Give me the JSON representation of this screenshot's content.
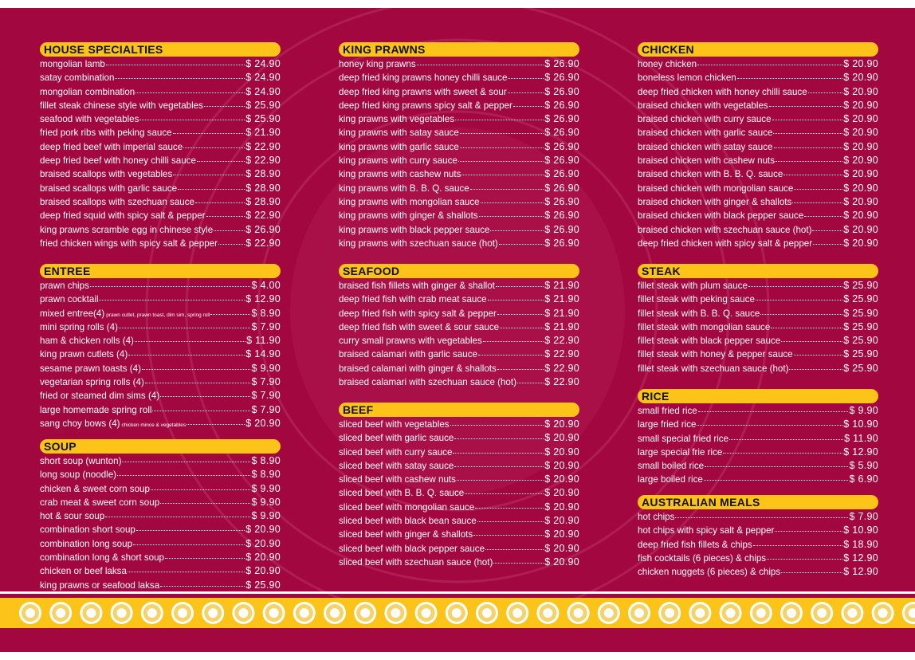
{
  "sections": [
    {
      "title": "HOUSE SPECIALTIES",
      "items": [
        {
          "name": "mongolian lamb",
          "price": "$ 24.90"
        },
        {
          "name": "satay combination",
          "price": "$ 24.90"
        },
        {
          "name": "mongolian combination",
          "price": "$ 24.90"
        },
        {
          "name": "fillet steak chinese style with vegetables",
          "price": "$ 25.90"
        },
        {
          "name": "seafood with vegetables",
          "price": "$ 25.90"
        },
        {
          "name": "fried pork ribs with peking sauce",
          "price": "$ 21.90"
        },
        {
          "name": "deep fried beef with imperial sauce",
          "price": "$ 22.90"
        },
        {
          "name": "deep fried beef with honey chilli sauce",
          "price": "$ 22.90"
        },
        {
          "name": "braised scallops with vegetables",
          "price": "$ 28.90"
        },
        {
          "name": "braised scallops with garlic sauce",
          "price": "$ 28.90"
        },
        {
          "name": "braised scallops with szechuan sauce",
          "price": "$ 28.90"
        },
        {
          "name": "deep fried squid with spicy salt & pepper",
          "price": "$ 22.90"
        },
        {
          "name": "king prawns scramble egg in chinese style",
          "price": "$ 26.90"
        },
        {
          "name": "fried chicken wings with spicy salt & pepper",
          "price": "$ 22.90"
        }
      ]
    },
    {
      "title": "ENTREE",
      "items": [
        {
          "name": "prawn chips",
          "price": "$ 4.00"
        },
        {
          "name": "prawn cocktail",
          "price": "$ 12.90"
        },
        {
          "name": "mixed entree(4)",
          "note": "prawn cutlet, prawn toast, dim sim, spring roll",
          "price": "$ 8.90"
        },
        {
          "name": "mini spring rolls (4)",
          "price": "$ 7.90"
        },
        {
          "name": "ham & chicken rolls (4)",
          "price": "$ 11.90"
        },
        {
          "name": "king prawn cutlets (4)",
          "price": "$ 14.90"
        },
        {
          "name": "sesame prawn toasts (4)",
          "price": "$ 9.90"
        },
        {
          "name": "vegetarian spring rolls (4)",
          "price": "$ 7.90"
        },
        {
          "name": "fried or steamed dim sims (4)",
          "price": "$ 7.90"
        },
        {
          "name": "large homemade spring roll",
          "price": "$ 7.90"
        },
        {
          "name": "sang choy bows (4)",
          "note": "chicken mince & vegetables",
          "price": "$ 20.90"
        }
      ]
    },
    {
      "title": "SOUP",
      "items": [
        {
          "name": "short soup (wunton)",
          "price": "$ 8.90"
        },
        {
          "name": "long soup (noodle)",
          "price": "$ 8.90"
        },
        {
          "name": "chicken & sweet corn soup",
          "price": "$ 9.90"
        },
        {
          "name": "crab meat & sweet corn soup",
          "price": "$ 9.90"
        },
        {
          "name": "hot & sour soup",
          "price": "$ 9.90"
        },
        {
          "name": "combination short soup",
          "price": "$ 20.90"
        },
        {
          "name": "combination long soup",
          "price": "$ 20.90"
        },
        {
          "name": "combination long & short soup",
          "price": "$ 20.90"
        },
        {
          "name": "chicken or beef laksa",
          "price": "$ 20.90"
        },
        {
          "name": "king prawns or seafood laksa",
          "price": "$ 25.90"
        }
      ]
    },
    {
      "title": "KING PRAWNS",
      "items": [
        {
          "name": "honey king prawns",
          "price": "$ 26.90"
        },
        {
          "name": "deep fried king prawns honey chilli sauce",
          "price": "$ 26.90"
        },
        {
          "name": "deep fried king prawns with sweet & sour",
          "price": "$ 26.90"
        },
        {
          "name": "deep fried king prawns spicy salt & pepper",
          "price": "$ 26.90"
        },
        {
          "name": "king prawns with vegetables",
          "price": "$ 26.90"
        },
        {
          "name": "king prawns with satay sauce",
          "price": "$ 26.90"
        },
        {
          "name": "king prawns with garlic sauce",
          "price": "$ 26.90"
        },
        {
          "name": "king prawns with curry sauce",
          "price": "$ 26.90"
        },
        {
          "name": "king prawns with cashew nuts",
          "price": "$ 26.90"
        },
        {
          "name": "king prawns with B. B. Q. sauce",
          "price": "$ 26.90"
        },
        {
          "name": "king prawns with mongolian sauce",
          "price": "$ 26.90"
        },
        {
          "name": "king prawns with ginger & shallots",
          "price": "$ 26.90"
        },
        {
          "name": "king prawns with black pepper sauce",
          "price": "$ 26.90"
        },
        {
          "name": "king prawns with szechuan sauce (hot)",
          "price": "$ 26.90"
        }
      ]
    },
    {
      "title": "SEAFOOD",
      "items": [
        {
          "name": "braised fish fillets with ginger & shallot",
          "price": "$ 21.90"
        },
        {
          "name": "deep fried fish with crab meat sauce",
          "price": "$ 21.90"
        },
        {
          "name": "deep fried fish with spicy salt & pepper",
          "price": "$ 21.90"
        },
        {
          "name": "deep fried fish with sweet & sour sauce",
          "price": "$ 21.90"
        },
        {
          "name": "curry small prawns with vegetables",
          "price": "$ 22.90"
        },
        {
          "name": "braised calamari with garlic sauce",
          "price": "$ 22.90"
        },
        {
          "name": "braised calamari with ginger & shallots",
          "price": "$ 22.90"
        },
        {
          "name": "braised calamari with szechuan sauce (hot)",
          "price": "$ 22.90"
        }
      ]
    },
    {
      "title": "BEEF",
      "items": [
        {
          "name": "sliced beef with vegetables",
          "price": "$ 20.90"
        },
        {
          "name": "sliced beef with garlic sauce",
          "price": "$ 20.90"
        },
        {
          "name": "sliced beef with curry sauce",
          "price": "$ 20.90"
        },
        {
          "name": "sliced beef with satay sauce",
          "price": "$ 20.90"
        },
        {
          "name": "sliced beef with cashew nuts",
          "price": "$ 20.90"
        },
        {
          "name": "sliced beef with B. B. Q. sauce",
          "price": "$ 20.90"
        },
        {
          "name": "sliced beef with mongolian sauce",
          "price": "$ 20.90"
        },
        {
          "name": "sliced beef with black bean sauce",
          "price": "$ 20.90"
        },
        {
          "name": "sliced beef with ginger & shallots",
          "price": "$ 20.90"
        },
        {
          "name": "sliced beef with black pepper sauce",
          "price": "$ 20.90"
        },
        {
          "name": "sliced beef with szechuan sauce (hot)",
          "price": "$ 20.90"
        }
      ]
    },
    {
      "title": "CHICKEN",
      "items": [
        {
          "name": "honey chicken",
          "price": "$ 20.90"
        },
        {
          "name": "boneless lemon chicken",
          "price": "$ 20.90"
        },
        {
          "name": "deep fried chicken with honey chilli sauce",
          "price": "$ 20.90"
        },
        {
          "name": "braised chicken with vegetables",
          "price": "$ 20.90"
        },
        {
          "name": "braised chicken with curry sauce",
          "price": "$ 20.90"
        },
        {
          "name": "braised chicken with garlic sauce",
          "price": "$ 20.90"
        },
        {
          "name": "braised chicken with satay sauce",
          "price": "$ 20.90"
        },
        {
          "name": "braised chicken with cashew nuts",
          "price": "$ 20.90"
        },
        {
          "name": "braised chicken with B. B. Q. sauce",
          "price": "$ 20.90"
        },
        {
          "name": "braised chicken with mongolian sauce",
          "price": "$ 20.90"
        },
        {
          "name": "braised chicken with ginger & shallots",
          "price": "$ 20.90"
        },
        {
          "name": "braised chicken with black pepper sauce",
          "price": "$ 20.90"
        },
        {
          "name": "braised chicken with szechuan sauce (hot)",
          "price": "$ 20.90"
        },
        {
          "name": "deep fried chicken with spicy salt & pepper",
          "price": "$ 20.90"
        }
      ]
    },
    {
      "title": "STEAK",
      "items": [
        {
          "name": "fillet steak with plum sauce",
          "price": "$ 25.90"
        },
        {
          "name": "fillet steak with peking  sauce",
          "price": "$ 25.90"
        },
        {
          "name": "fillet steak with B. B. Q.  sauce",
          "price": "$ 25.90"
        },
        {
          "name": "fillet steak with mongolian sauce",
          "price": "$ 25.90"
        },
        {
          "name": "fillet steak with black pepper sauce",
          "price": "$ 25.90"
        },
        {
          "name": "fillet steak with honey & pepper sauce",
          "price": "$ 25.90"
        },
        {
          "name": "fillet steak with szechuan sauce (hot)",
          "price": "$ 25.90"
        }
      ]
    },
    {
      "title": "RICE",
      "items": [
        {
          "name": "small fried rice",
          "price": "$ 9.90"
        },
        {
          "name": "large fried rice",
          "price": "$ 10.90"
        },
        {
          "name": "small special fried rice",
          "price": "$ 11.90"
        },
        {
          "name": "large special frie rice",
          "price": "$ 12.90"
        },
        {
          "name": "small boiled rice",
          "price": "$ 5.90"
        },
        {
          "name": "large boiled rice",
          "price": "$ 6.90"
        }
      ]
    },
    {
      "title": "AUSTRALIAN MEALS",
      "items": [
        {
          "name": "hot chips",
          "price": "$ 7.90"
        },
        {
          "name": "hot chips with spicy salt & pepper",
          "price": "$ 10.90"
        },
        {
          "name": "deep fried fish fillets & chips",
          "price": "$ 18.90"
        },
        {
          "name": "fish cocktails (6 pieces) & chips",
          "price": "$ 12.90"
        },
        {
          "name": "chicken nuggets (6 pieces) & chips",
          "price": "$ 12.90"
        }
      ]
    }
  ]
}
